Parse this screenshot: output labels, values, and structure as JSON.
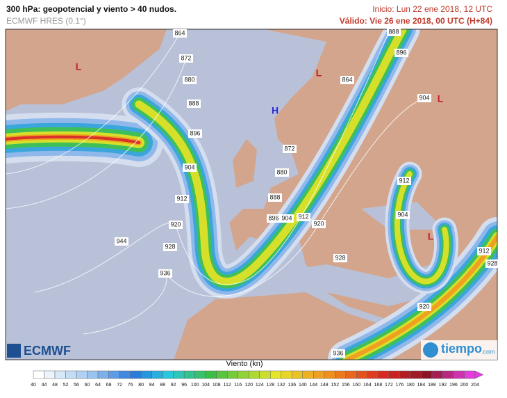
{
  "header": {
    "title": "300 hPa: geopotencial y viento > 40 nudos.",
    "model": "ECMWF HRES (0.1°)",
    "init": "Inicio: Lun 22 ene 2018, 12 UTC",
    "valid": "Válido: Vie 26 ene 2018, 00 UTC (H+84)"
  },
  "contour_labels": [
    "864",
    "872",
    "880",
    "888",
    "896",
    "904",
    "912",
    "920",
    "928",
    "936",
    "944",
    "864",
    "872",
    "880",
    "888",
    "896",
    "904",
    "912",
    "920",
    "928",
    "888",
    "896",
    "904",
    "912",
    "904",
    "912",
    "928",
    "920",
    "936"
  ],
  "pressure_centers": [
    "L",
    "L",
    "L",
    "L",
    "H"
  ],
  "logos": {
    "ecmwf": "ECMWF",
    "tiempo": "tiempo",
    ".com": ".com"
  },
  "colorbar": {
    "title": "Viento (kn)",
    "ticks": [
      40,
      44,
      48,
      52,
      56,
      60,
      64,
      68,
      72,
      76,
      80,
      84,
      88,
      92,
      96,
      100,
      104,
      108,
      112,
      116,
      120,
      124,
      128,
      132,
      136,
      140,
      144,
      148,
      152,
      156,
      160,
      164,
      168,
      172,
      176,
      180,
      184,
      188,
      192,
      196,
      200,
      204
    ]
  }
}
